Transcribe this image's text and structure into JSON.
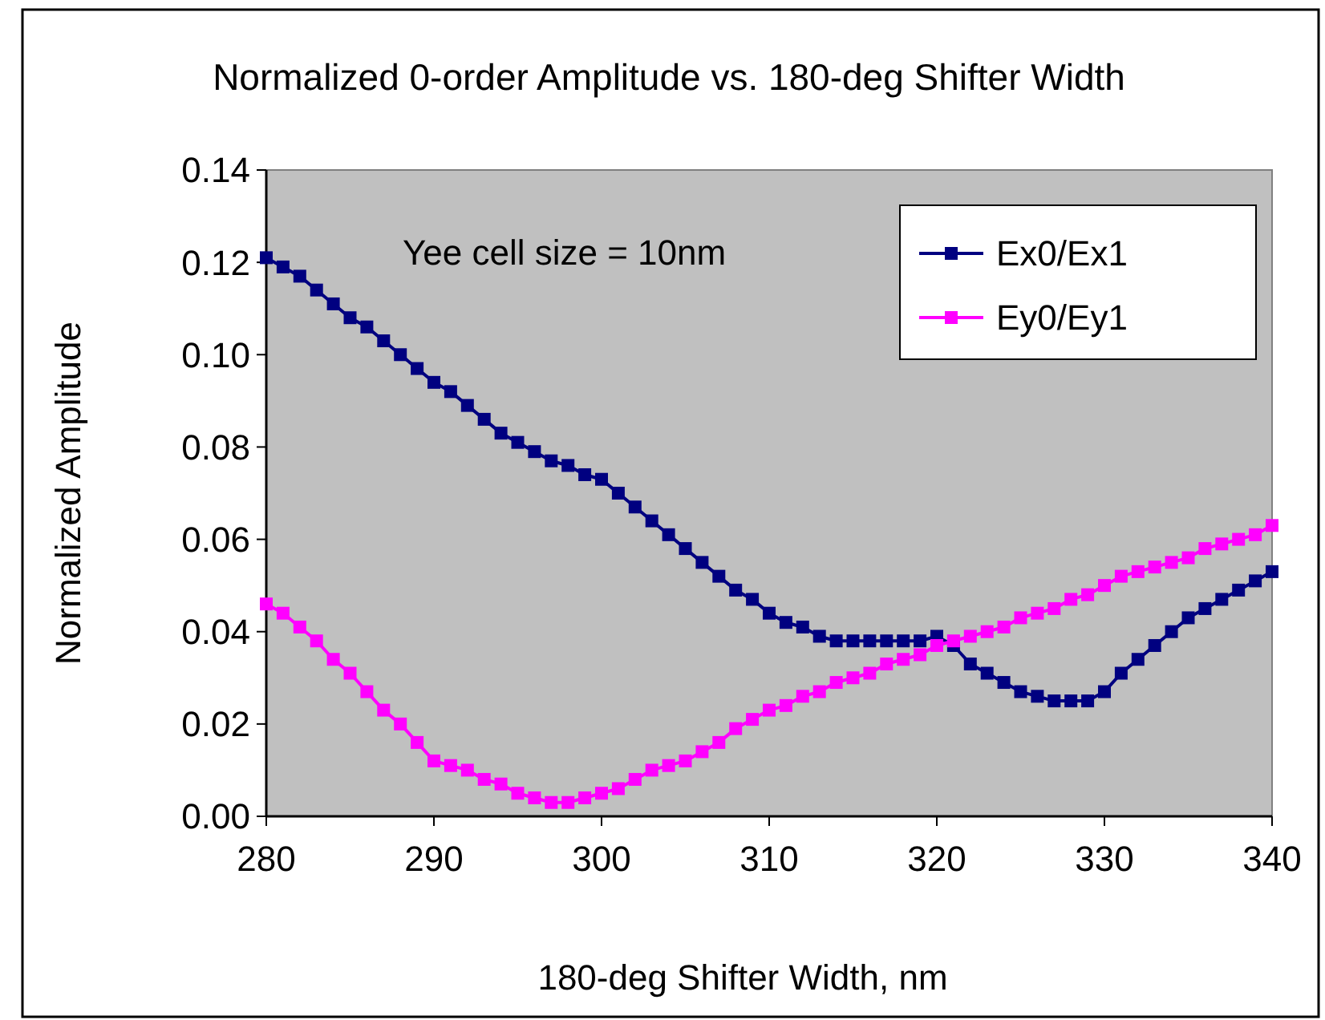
{
  "chart_data": {
    "type": "line",
    "title": "Normalized 0-order Amplitude vs. 180-deg Shifter Width",
    "xlabel": "180-deg Shifter Width, nm",
    "ylabel": "Normalized Amplitude",
    "annotations": [
      "Yee cell size = 10nm"
    ],
    "x": [
      280,
      281,
      282,
      283,
      284,
      285,
      286,
      287,
      288,
      289,
      290,
      291,
      292,
      293,
      294,
      295,
      296,
      297,
      298,
      299,
      300,
      301,
      302,
      303,
      304,
      305,
      306,
      307,
      308,
      309,
      310,
      311,
      312,
      313,
      314,
      315,
      316,
      317,
      318,
      319,
      320,
      321,
      322,
      323,
      324,
      325,
      326,
      327,
      328,
      329,
      330,
      331,
      332,
      333,
      334,
      335,
      336,
      337,
      338,
      339,
      340
    ],
    "series": [
      {
        "name": "Ex0/Ex1",
        "color": "#000080",
        "values": [
          0.121,
          0.119,
          0.117,
          0.114,
          0.111,
          0.108,
          0.106,
          0.103,
          0.1,
          0.097,
          0.094,
          0.092,
          0.089,
          0.086,
          0.083,
          0.081,
          0.079,
          0.077,
          0.076,
          0.074,
          0.073,
          0.07,
          0.067,
          0.064,
          0.061,
          0.058,
          0.055,
          0.052,
          0.049,
          0.047,
          0.044,
          0.042,
          0.041,
          0.039,
          0.038,
          0.038,
          0.038,
          0.038,
          0.038,
          0.038,
          0.039,
          0.037,
          0.033,
          0.031,
          0.029,
          0.027,
          0.026,
          0.025,
          0.025,
          0.025,
          0.027,
          0.031,
          0.034,
          0.037,
          0.04,
          0.043,
          0.045,
          0.047,
          0.049,
          0.051,
          0.053
        ]
      },
      {
        "name": "Ey0/Ey1",
        "color": "#ff00ff",
        "values": [
          0.046,
          0.044,
          0.041,
          0.038,
          0.034,
          0.031,
          0.027,
          0.023,
          0.02,
          0.016,
          0.012,
          0.011,
          0.01,
          0.008,
          0.007,
          0.005,
          0.004,
          0.003,
          0.003,
          0.004,
          0.005,
          0.006,
          0.008,
          0.01,
          0.011,
          0.012,
          0.014,
          0.016,
          0.019,
          0.021,
          0.023,
          0.024,
          0.026,
          0.027,
          0.029,
          0.03,
          0.031,
          0.033,
          0.034,
          0.035,
          0.037,
          0.038,
          0.039,
          0.04,
          0.041,
          0.043,
          0.044,
          0.045,
          0.047,
          0.048,
          0.05,
          0.052,
          0.053,
          0.054,
          0.055,
          0.056,
          0.058,
          0.059,
          0.06,
          0.061,
          0.063
        ]
      }
    ],
    "xlim": [
      280,
      340
    ],
    "xticks": [
      280,
      290,
      300,
      310,
      320,
      330,
      340
    ],
    "ylim": [
      0,
      0.14
    ],
    "yticks": [
      {
        "value": 0,
        "label": "0.00"
      },
      {
        "value": 0.02,
        "label": "0.02"
      },
      {
        "value": 0.04,
        "label": "0.04"
      },
      {
        "value": 0.06,
        "label": "0.06"
      },
      {
        "value": 0.08,
        "label": "0.08"
      },
      {
        "value": 0.1,
        "label": "0.10"
      },
      {
        "value": 0.12,
        "label": "0.12"
      },
      {
        "value": 0.14,
        "label": "0.14"
      }
    ],
    "grid": false,
    "legend": "top right",
    "marker": "square",
    "line_style": "solid"
  }
}
